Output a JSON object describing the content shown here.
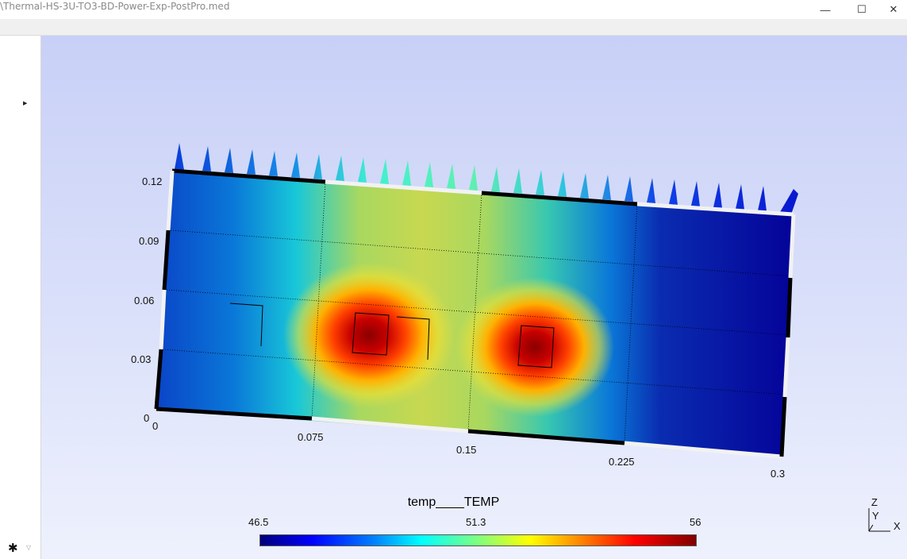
{
  "window": {
    "title": "\\Thermal-HS-3U-TO3-BD-Power-Exp-PostPro.med",
    "minimize_glyph": "—",
    "maximize_glyph": "☐",
    "close_glyph": "✕"
  },
  "left_panel": {
    "expand_icon": "caret-right-icon",
    "settings_icon": "gear-icon",
    "dropdown_icon": "chevron-down-icon"
  },
  "axes": {
    "y_ticks": [
      "0.12",
      "0.09",
      "0.06",
      "0.03",
      "0"
    ],
    "x_ticks": [
      "0",
      "0.075",
      "0.15",
      "0.225",
      "0.3"
    ]
  },
  "colorbar": {
    "field_name": "temp____TEMP",
    "min": "46.5",
    "mid": "51.3",
    "max": "56",
    "colors": [
      "#00007a",
      "#0000ff",
      "#00ffff",
      "#ffff00",
      "#ff0000",
      "#800000"
    ]
  },
  "orientation_triad": {
    "z": "Z",
    "y": "Y",
    "x": "X"
  }
}
